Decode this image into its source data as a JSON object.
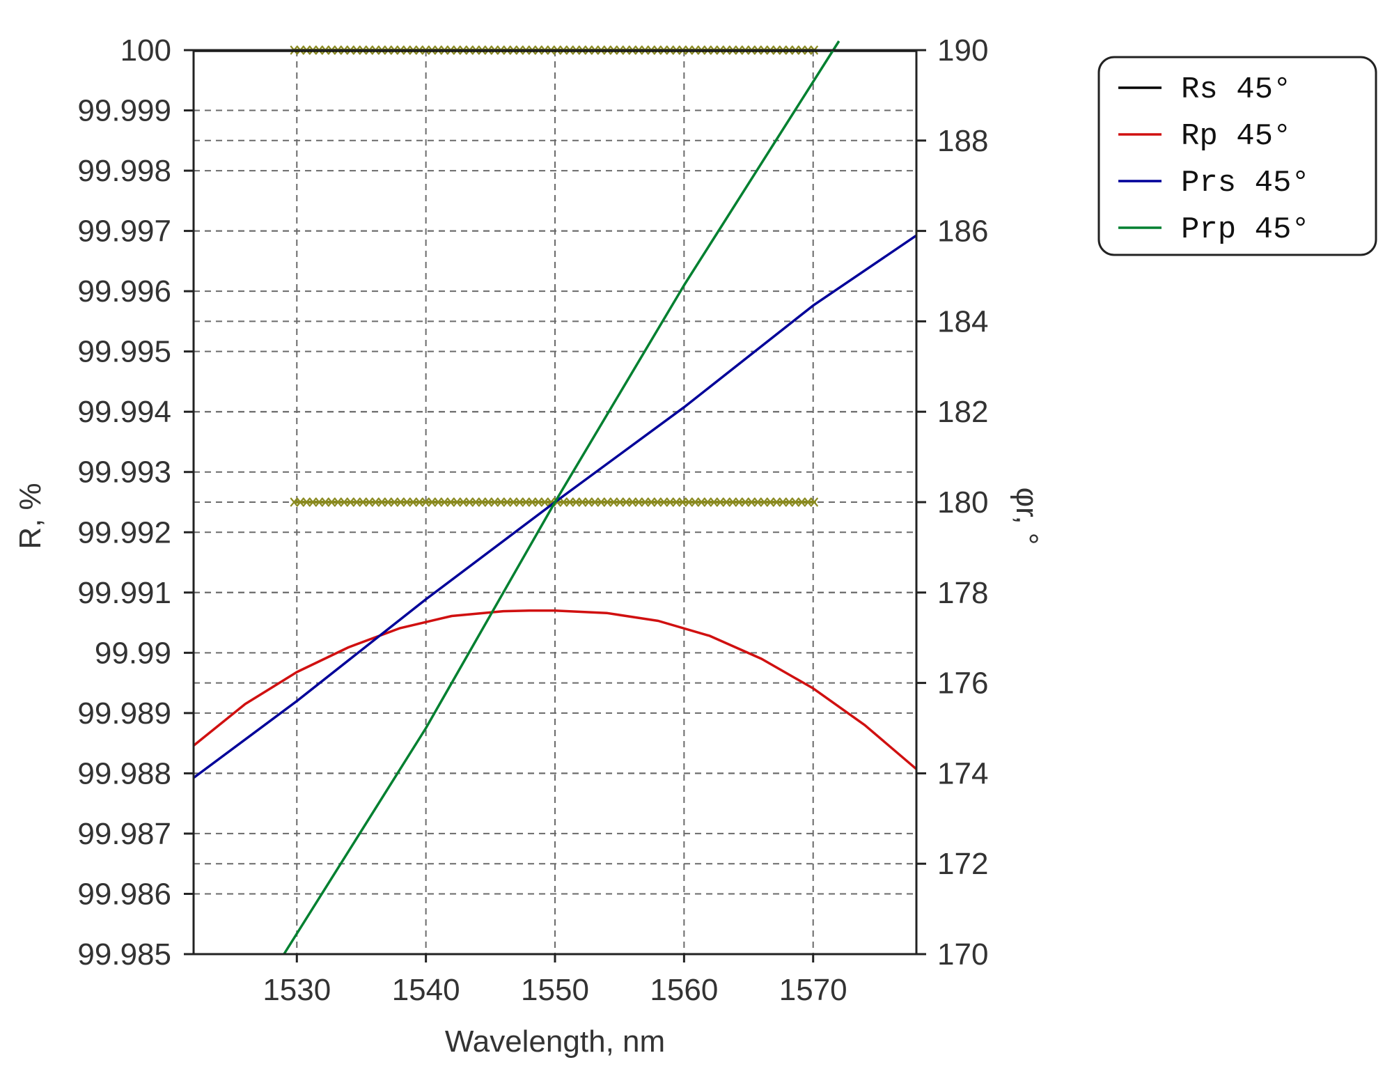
{
  "chart_data": {
    "type": "line",
    "xlabel": "Wavelength, nm",
    "ylabel_left": "R, %",
    "ylabel_right": "φr, °",
    "xlim": [
      1522,
      1578
    ],
    "ylim_left": [
      99.985,
      100
    ],
    "ylim_right": [
      170,
      190
    ],
    "x_ticks": [
      1530,
      1540,
      1550,
      1560,
      1570
    ],
    "y_ticks_left": [
      "100",
      "99.999",
      "99.998",
      "99.997",
      "99.996",
      "99.995",
      "99.994",
      "99.993",
      "99.992",
      "99.991",
      "99.99",
      "99.989",
      "99.988",
      "99.987",
      "99.986",
      "99.985"
    ],
    "y_ticks_right": [
      "190",
      "188",
      "186",
      "184",
      "182",
      "180",
      "178",
      "176",
      "174",
      "172",
      "170"
    ],
    "grid": true,
    "legend_position": "top-right (outside plot)",
    "series": [
      {
        "name": "Rs 45°",
        "axis": "left",
        "color": "#000000",
        "x": [
          1522,
          1530,
          1540,
          1550,
          1560,
          1570,
          1578
        ],
        "y": [
          99.99999,
          99.99999,
          99.99999,
          99.99999,
          99.99999,
          99.99999,
          99.99999
        ]
      },
      {
        "name": "Rp 45°",
        "axis": "left",
        "color": "#d01010",
        "x": [
          1522,
          1526,
          1530,
          1534,
          1538,
          1542,
          1546,
          1548,
          1550,
          1554,
          1558,
          1562,
          1566,
          1570,
          1574,
          1578
        ],
        "y": [
          99.98846,
          99.98915,
          99.98968,
          99.99009,
          99.99041,
          99.99061,
          99.99069,
          99.9907,
          99.9907,
          99.99066,
          99.99053,
          99.99028,
          99.9899,
          99.98941,
          99.9888,
          99.98807
        ]
      },
      {
        "name": "Prs 45°",
        "axis": "right",
        "color": "#000099",
        "x": [
          1522,
          1530,
          1540,
          1550,
          1560,
          1570,
          1578
        ],
        "y": [
          173.9,
          175.6,
          177.85,
          180.0,
          182.1,
          184.35,
          185.9
        ]
      },
      {
        "name": "Prp 45°",
        "axis": "right",
        "color": "#008030",
        "x": [
          1529,
          1540,
          1550,
          1560,
          1572
        ],
        "y": [
          170.0,
          175.0,
          180.0,
          184.8,
          190.2
        ]
      }
    ],
    "markers": [
      {
        "axis": "right",
        "y": 190,
        "x_range": [
          1530,
          1570
        ],
        "color": "#8a8a20"
      },
      {
        "axis": "right",
        "y": 180,
        "x_range": [
          1530,
          1570
        ],
        "color": "#8a8a20"
      }
    ]
  }
}
